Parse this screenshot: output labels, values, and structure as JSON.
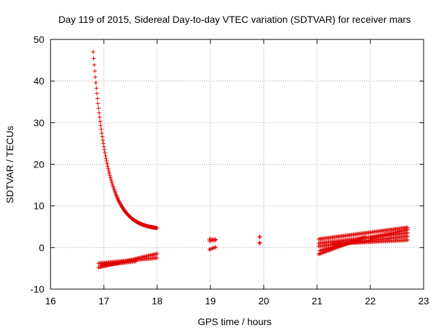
{
  "chart_data": {
    "type": "scatter",
    "title": "Day 119 of 2015, Sidereal Day-to-day VTEC variation (SDTVAR) for receiver mars",
    "xlabel": "GPS time / hours",
    "ylabel": "SDTVAR / TECUs",
    "xlim": [
      16,
      23
    ],
    "ylim": [
      -10,
      50
    ],
    "x_ticks": [
      "16",
      "17",
      "18",
      "19",
      "20",
      "21",
      "22",
      "23"
    ],
    "y_ticks": [
      "-10",
      "0",
      "10",
      "20",
      "30",
      "40",
      "50"
    ],
    "grid": true,
    "marker": "+",
    "color": "#e00000",
    "series": [
      {
        "name": "decay-arc",
        "segments": [
          {
            "x0": 16.8,
            "x1": 18.0,
            "shape": "decay",
            "y0": 47,
            "y1": 4.2
          }
        ]
      },
      {
        "name": "low-band",
        "segments": [
          {
            "x0": 16.9,
            "x1": 18.0,
            "y0": -4.8,
            "y1": -1.5
          },
          {
            "x0": 16.9,
            "x1": 18.0,
            "y0": -3.8,
            "y1": -2.5
          },
          {
            "x0": 16.95,
            "x1": 17.6,
            "y0": -4.3,
            "y1": -3.3
          }
        ]
      },
      {
        "name": "cluster-19h",
        "segments": [
          {
            "x0": 18.98,
            "x1": 19.1,
            "y0": 2.0,
            "y1": 1.9
          },
          {
            "x0": 18.98,
            "x1": 19.1,
            "y0": 1.6,
            "y1": 1.8
          },
          {
            "x0": 18.98,
            "x1": 19.1,
            "y0": -0.5,
            "y1": 0.1
          }
        ]
      },
      {
        "name": "cluster-20h",
        "segments": [
          {
            "x0": 19.92,
            "x1": 19.93,
            "y0": 2.6,
            "y1": 2.5
          },
          {
            "x0": 19.92,
            "x1": 19.93,
            "y0": 1.2,
            "y1": 1.0
          }
        ]
      },
      {
        "name": "band-21-23h",
        "segments": [
          {
            "x0": 21.03,
            "x1": 22.7,
            "y0": 2.0,
            "y1": 4.8
          },
          {
            "x0": 21.03,
            "x1": 22.7,
            "y0": 1.0,
            "y1": 3.5
          },
          {
            "x0": 21.03,
            "x1": 21.9,
            "y0": -1.6,
            "y1": 2.5
          },
          {
            "x0": 21.05,
            "x1": 21.8,
            "y0": -0.8,
            "y1": 1.8
          },
          {
            "x0": 21.03,
            "x1": 22.7,
            "y0": 0.3,
            "y1": 2.7
          },
          {
            "x0": 21.3,
            "x1": 22.7,
            "y0": 0.9,
            "y1": 1.8
          },
          {
            "x0": 22.0,
            "x1": 22.7,
            "y0": 2.3,
            "y1": 4.3
          }
        ]
      }
    ]
  }
}
